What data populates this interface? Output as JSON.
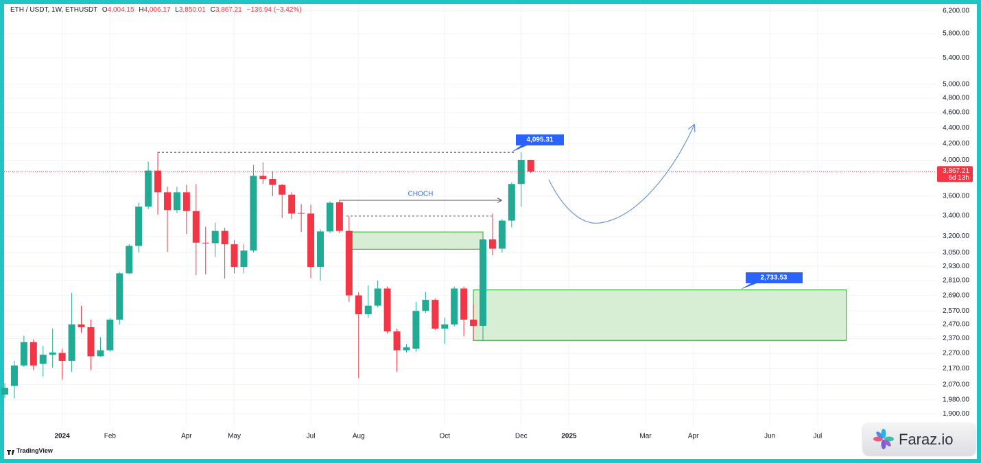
{
  "header": {
    "symbol": "ETH / USDT, 1W, ETHUSDT",
    "fields": [
      {
        "key": "O",
        "value": "4,004.15"
      },
      {
        "key": "H",
        "value": "4,006.17"
      },
      {
        "key": "L",
        "value": "3,850.01"
      },
      {
        "key": "C",
        "value": "3,867.21"
      }
    ],
    "change": "−136.94 (−3.42%)"
  },
  "branding": {
    "tradingview": "TradingView",
    "badge": "Faraz.io"
  },
  "chart_data": {
    "type": "candlestick",
    "log_scale": true,
    "grid": true,
    "up_color": "#22ab94",
    "down_color": "#f23645",
    "ylim": [
      1830,
      6400
    ],
    "yticks": [
      {
        "value": 6200,
        "label": "6,200.00"
      },
      {
        "value": 5800,
        "label": "5,800.00"
      },
      {
        "value": 5400,
        "label": "5,400.00"
      },
      {
        "value": 5000,
        "label": "5,000.00"
      },
      {
        "value": 4800,
        "label": "4,800.00"
      },
      {
        "value": 4600,
        "label": "4,600.00"
      },
      {
        "value": 4400,
        "label": "4,400.00"
      },
      {
        "value": 4200,
        "label": "4,200.00"
      },
      {
        "value": 4000,
        "label": "4,000.00"
      },
      {
        "value": 3600,
        "label": "3,600.00"
      },
      {
        "value": 3400,
        "label": "3,400.00"
      },
      {
        "value": 3200,
        "label": "3,200.00"
      },
      {
        "value": 3050,
        "label": "3,050.00"
      },
      {
        "value": 2930,
        "label": "2,930.00"
      },
      {
        "value": 2810,
        "label": "2,810.00"
      },
      {
        "value": 2690,
        "label": "2,690.00"
      },
      {
        "value": 2570,
        "label": "2,570.00"
      },
      {
        "value": 2470,
        "label": "2,470.00"
      },
      {
        "value": 2370,
        "label": "2,370.00"
      },
      {
        "value": 2270,
        "label": "2,270.00"
      },
      {
        "value": 2170,
        "label": "2,170.00"
      },
      {
        "value": 2070,
        "label": "2,070.00"
      },
      {
        "value": 1980,
        "label": "1,980.00"
      },
      {
        "value": 1900,
        "label": "1,900.00"
      }
    ],
    "categories": [
      null,
      null,
      null,
      null,
      null,
      null,
      "2024",
      null,
      null,
      null,
      null,
      "Feb",
      null,
      null,
      null,
      null,
      null,
      null,
      null,
      "Apr",
      null,
      null,
      null,
      null,
      "May",
      null,
      null,
      null,
      null,
      null,
      null,
      null,
      "Jul",
      null,
      null,
      null,
      null,
      "Aug",
      null,
      null,
      null,
      null,
      null,
      null,
      null,
      null,
      "Oct",
      null,
      null,
      null,
      null,
      null,
      null,
      null,
      "Dec",
      null,
      null,
      null,
      null,
      "2025",
      null,
      null,
      null,
      null,
      null,
      null,
      null,
      "Mar",
      null,
      null,
      null,
      null,
      "Apr",
      null,
      null,
      null,
      null,
      null,
      null,
      null,
      "Jun",
      null,
      null,
      null,
      null,
      "Jul",
      null,
      null,
      null,
      null,
      null,
      null,
      null,
      null,
      null,
      null,
      null,
      null
    ],
    "open": [
      2010,
      2062,
      2190,
      2345,
      2200,
      2260,
      2272,
      2220,
      2470,
      2450,
      2250,
      2290,
      2505,
      2870,
      3110,
      3490,
      3880,
      3640,
      3455,
      3640,
      3445,
      3140,
      3135,
      3250,
      3125,
      2925,
      3068,
      3820,
      3785,
      3720,
      3615,
      3425,
      3420,
      2925,
      3245,
      3535,
      3250,
      2690,
      2545,
      2610,
      2745,
      2420,
      2290,
      2300,
      2570,
      2655,
      2440,
      2470,
      2745,
      2505,
      2460,
      3170,
      3085,
      3350,
      3730,
      4004.15,
      null,
      null,
      null,
      null,
      null,
      null,
      null,
      null,
      null,
      null,
      null,
      null,
      null,
      null,
      null,
      null,
      null,
      null,
      null,
      null,
      null,
      null,
      null,
      null,
      null,
      null,
      null,
      null,
      null,
      null,
      null,
      null,
      null,
      null,
      null,
      null,
      null,
      null,
      null,
      null,
      null,
      null
    ],
    "high": [
      2080,
      2220,
      2390,
      2365,
      2320,
      2440,
      2300,
      2710,
      2610,
      2505,
      2380,
      2515,
      2880,
      3125,
      3530,
      3985,
      4093,
      3700,
      3700,
      3720,
      3730,
      3290,
      3330,
      3280,
      3165,
      3125,
      3945,
      3975,
      3870,
      3730,
      3640,
      3515,
      3510,
      3265,
      3545,
      3560,
      3390,
      2715,
      2770,
      2810,
      2760,
      2440,
      2330,
      2640,
      2715,
      2665,
      2520,
      2760,
      2760,
      2620,
      3180,
      3420,
      3365,
      3745,
      4095.31,
      4006.17,
      null,
      null,
      null,
      null,
      null,
      null,
      null,
      null,
      null,
      null,
      null,
      null,
      null,
      null,
      null,
      null,
      null,
      null,
      null,
      null,
      null,
      null,
      null,
      null,
      null,
      null,
      null,
      null,
      null,
      null,
      null,
      null,
      null,
      null,
      null,
      null,
      null,
      null,
      null,
      null,
      null,
      null
    ],
    "low": [
      1990,
      1988,
      2180,
      2160,
      2120,
      2175,
      2100,
      2150,
      2410,
      2160,
      2245,
      2280,
      2470,
      2860,
      3050,
      3465,
      3410,
      3055,
      3425,
      3220,
      2855,
      2860,
      3010,
      2825,
      2870,
      2870,
      3050,
      3730,
      3600,
      3375,
      3365,
      3240,
      2830,
      2810,
      3230,
      3230,
      2640,
      2110,
      2520,
      2595,
      2405,
      2150,
      2275,
      2280,
      2555,
      2430,
      2335,
      2455,
      2385,
      2355,
      2355,
      3025,
      3050,
      3285,
      3490,
      3850.01,
      null,
      null,
      null,
      null,
      null,
      null,
      null,
      null,
      null,
      null,
      null,
      null,
      null,
      null,
      null,
      null,
      null,
      null,
      null,
      null,
      null,
      null,
      null,
      null,
      null,
      null,
      null,
      null,
      null,
      null,
      null,
      null,
      null,
      null,
      null,
      null,
      null,
      null,
      null,
      null,
      null,
      null
    ],
    "close": [
      2050,
      2190,
      2345,
      2190,
      2260,
      2275,
      2220,
      2470,
      2450,
      2250,
      2290,
      2505,
      2870,
      3110,
      3490,
      3880,
      3640,
      3455,
      3640,
      3445,
      3140,
      3135,
      3250,
      3125,
      2925,
      3068,
      3820,
      3785,
      3720,
      3615,
      3420,
      3420,
      2925,
      3245,
      3530,
      3250,
      2690,
      2545,
      2610,
      2745,
      2420,
      2290,
      2310,
      2570,
      2655,
      2440,
      2470,
      2745,
      2505,
      2460,
      3170,
      3085,
      3350,
      3730,
      4004.15,
      3867.21,
      null,
      null,
      null,
      null,
      null,
      null,
      null,
      null,
      null,
      null,
      null,
      null,
      null,
      null,
      null,
      null,
      null,
      null,
      null,
      null,
      null,
      null,
      null,
      null,
      null,
      null,
      null,
      null,
      null,
      null,
      null,
      null,
      null,
      null,
      null,
      null,
      null,
      null,
      null,
      null,
      null,
      null
    ],
    "last_price": {
      "label": "3,867.21",
      "countdown": "6d 13h",
      "color": "#f23645"
    },
    "annotations": [
      {
        "text": "4,095.31"
      },
      {
        "text": "2,733.53"
      },
      {
        "text": "CHOCH"
      }
    ],
    "zones": [
      {
        "x": [
          36,
          50
        ],
        "low": 3080,
        "high": 3240,
        "color": "#d7eed4",
        "border": "#4caf50"
      },
      {
        "x": [
          49,
          88
        ],
        "low": 2357,
        "high": 2733.53,
        "color": "#d7eed4",
        "border": "#4caf50"
      }
    ]
  }
}
